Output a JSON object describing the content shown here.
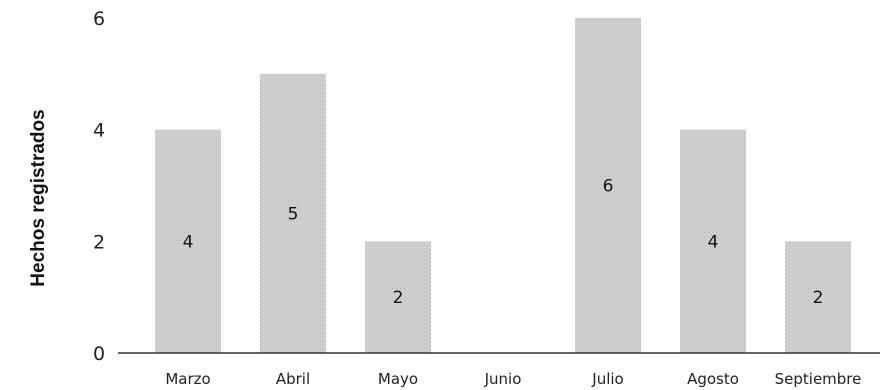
{
  "chart_data": {
    "type": "bar",
    "title": "",
    "xlabel": "",
    "ylabel": "Hechos registrados",
    "categories": [
      "Marzo",
      "Abril",
      "Mayo",
      "Junio",
      "Julio",
      "Agosto",
      "Septiembre"
    ],
    "values": [
      4,
      5,
      2,
      0,
      6,
      4,
      2
    ],
    "data_labels": [
      "4",
      "5",
      "2",
      "",
      "6",
      "4",
      "2"
    ],
    "ylim": [
      0,
      6
    ],
    "yticks": [
      "0",
      "2",
      "4",
      "6"
    ],
    "grid": false,
    "legend": "none",
    "bar_color": "#c9c9c9",
    "axis_color": "#333333"
  }
}
